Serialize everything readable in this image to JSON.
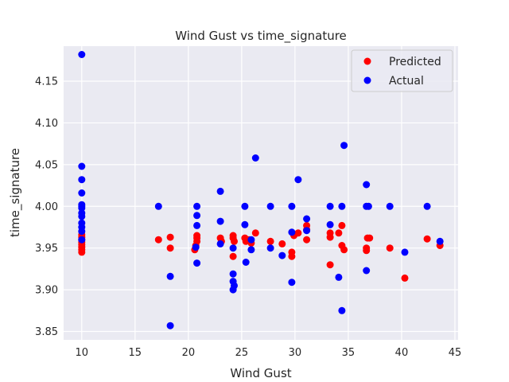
{
  "chart_data": {
    "type": "scatter",
    "title": "Wind Gust vs time_signature",
    "xlabel": "Wind Gust",
    "ylabel": "time_signature",
    "xlim": [
      8.3,
      45.3
    ],
    "ylim": [
      3.84,
      4.192
    ],
    "xticks": [
      10,
      15,
      20,
      25,
      30,
      35,
      40,
      45
    ],
    "yticks": [
      3.85,
      3.9,
      3.95,
      4.0,
      4.05,
      4.1,
      4.15
    ],
    "xtick_labels": [
      "10",
      "15",
      "20",
      "25",
      "30",
      "35",
      "40",
      "45"
    ],
    "ytick_labels": [
      "3.85",
      "3.90",
      "3.95",
      "4.00",
      "4.05",
      "4.10",
      "4.15"
    ],
    "grid": true,
    "legend_position": "top-right",
    "background_color": "#eaeaf2",
    "series": [
      {
        "name": "Predicted",
        "color": "#ff0000",
        "points": [
          [
            10,
            3.945
          ],
          [
            10,
            3.948
          ],
          [
            10,
            3.951
          ],
          [
            10,
            3.954
          ],
          [
            10,
            3.957
          ],
          [
            10,
            3.96
          ],
          [
            10,
            3.963
          ],
          [
            10,
            3.966
          ],
          [
            17.2,
            3.96
          ],
          [
            18.3,
            3.963
          ],
          [
            18.3,
            3.95
          ],
          [
            20.6,
            3.948
          ],
          [
            20.8,
            3.962
          ],
          [
            20.8,
            3.958
          ],
          [
            20.8,
            3.965
          ],
          [
            20.7,
            3.953
          ],
          [
            23.0,
            3.962
          ],
          [
            23.1,
            3.958
          ],
          [
            24.2,
            3.94
          ],
          [
            24.2,
            3.962
          ],
          [
            24.3,
            3.958
          ],
          [
            24.2,
            3.965
          ],
          [
            25.3,
            3.962
          ],
          [
            25.4,
            3.958
          ],
          [
            25.9,
            3.956
          ],
          [
            26.3,
            3.968
          ],
          [
            25.7,
            3.96
          ],
          [
            27.7,
            3.958
          ],
          [
            28.8,
            3.955
          ],
          [
            29.7,
            3.945
          ],
          [
            29.7,
            3.94
          ],
          [
            29.9,
            3.965
          ],
          [
            30.3,
            3.968
          ],
          [
            31.1,
            3.96
          ],
          [
            31.1,
            3.972
          ],
          [
            31.1,
            3.977
          ],
          [
            33.3,
            3.93
          ],
          [
            33.3,
            3.968
          ],
          [
            33.3,
            3.963
          ],
          [
            34.1,
            3.968
          ],
          [
            34.4,
            3.953
          ],
          [
            34.4,
            3.977
          ],
          [
            34.6,
            3.948
          ],
          [
            36.7,
            3.95
          ],
          [
            36.7,
            3.947
          ],
          [
            36.8,
            3.962
          ],
          [
            37.0,
            3.962
          ],
          [
            38.9,
            3.95
          ],
          [
            40.3,
            3.914
          ],
          [
            42.4,
            3.961
          ],
          [
            43.6,
            3.953
          ]
        ]
      },
      {
        "name": "Actual",
        "color": "#0000ff",
        "points": [
          [
            10,
            4.182
          ],
          [
            10,
            4.048
          ],
          [
            10,
            4.032
          ],
          [
            10,
            4.016
          ],
          [
            10,
            4.002
          ],
          [
            10,
            4.0
          ],
          [
            10,
            3.998
          ],
          [
            10,
            3.992
          ],
          [
            10,
            3.988
          ],
          [
            10,
            3.98
          ],
          [
            10,
            3.975
          ],
          [
            10,
            3.97
          ],
          [
            10,
            3.96
          ],
          [
            17.2,
            4.0
          ],
          [
            18.3,
            3.916
          ],
          [
            18.3,
            3.857
          ],
          [
            20.8,
            4.0
          ],
          [
            20.8,
            3.989
          ],
          [
            20.8,
            3.977
          ],
          [
            20.7,
            3.951
          ],
          [
            20.8,
            3.932
          ],
          [
            23.0,
            4.018
          ],
          [
            23.0,
            3.982
          ],
          [
            23.0,
            3.955
          ],
          [
            24.2,
            3.95
          ],
          [
            24.2,
            3.919
          ],
          [
            24.2,
            3.91
          ],
          [
            24.3,
            3.905
          ],
          [
            24.2,
            3.9
          ],
          [
            25.3,
            4.0
          ],
          [
            25.3,
            3.978
          ],
          [
            25.4,
            3.933
          ],
          [
            25.9,
            3.948
          ],
          [
            25.9,
            3.96
          ],
          [
            26.3,
            4.058
          ],
          [
            27.7,
            4.0
          ],
          [
            27.7,
            3.95
          ],
          [
            28.8,
            3.941
          ],
          [
            29.7,
            4.0
          ],
          [
            29.7,
            3.969
          ],
          [
            29.7,
            3.909
          ],
          [
            30.3,
            4.032
          ],
          [
            31.1,
            3.985
          ],
          [
            31.1,
            3.971
          ],
          [
            33.3,
            4.0
          ],
          [
            33.3,
            3.978
          ],
          [
            34.1,
            3.915
          ],
          [
            34.4,
            4.0
          ],
          [
            34.4,
            3.875
          ],
          [
            34.6,
            4.073
          ],
          [
            36.7,
            4.026
          ],
          [
            36.7,
            4.0
          ],
          [
            36.9,
            4.0
          ],
          [
            36.7,
            3.923
          ],
          [
            38.9,
            4.0
          ],
          [
            40.3,
            3.945
          ],
          [
            42.4,
            4.0
          ],
          [
            43.6,
            3.958
          ]
        ]
      }
    ]
  }
}
